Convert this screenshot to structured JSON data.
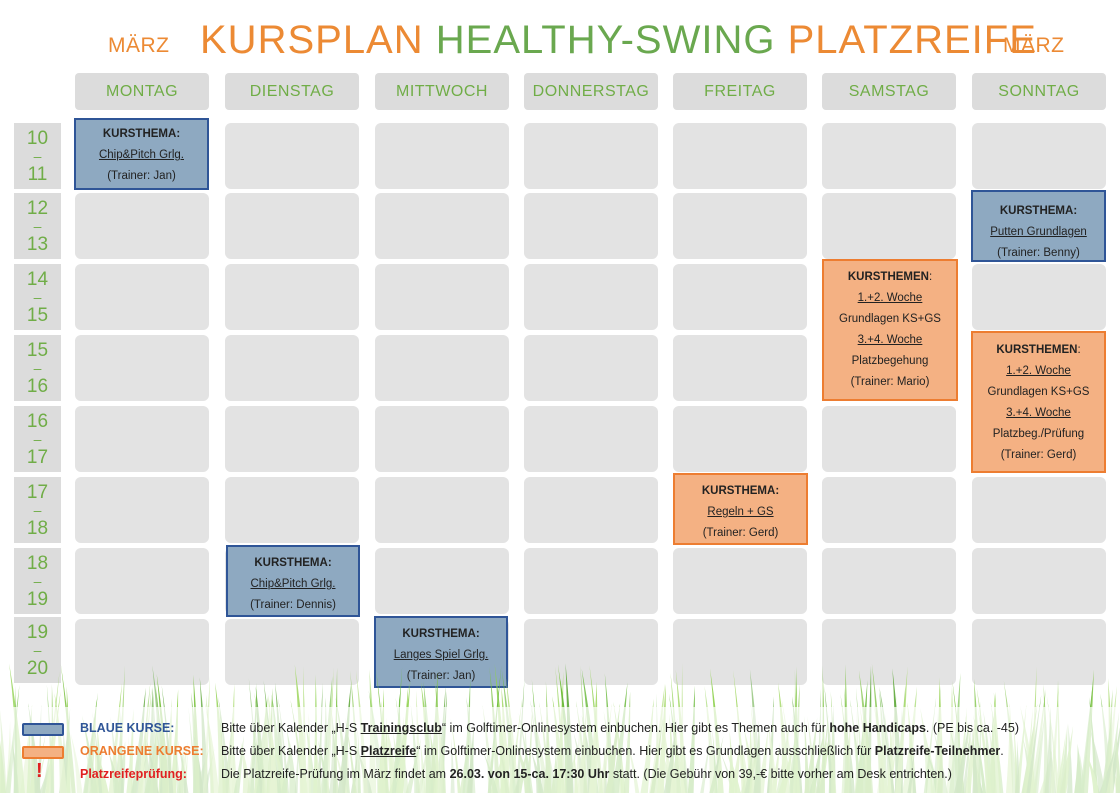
{
  "header": {
    "month_left": "MÄRZ",
    "month_right": "MÄRZ",
    "title_part1": "KURSPLAN",
    "title_part2": "HEALTHY-SWING",
    "title_part3": "PLATZREIFE"
  },
  "days": [
    "MONTAG",
    "DIENSTAG",
    "MITTWOCH",
    "DONNERSTAG",
    "FREITAG",
    "SAMSTAG",
    "SONNTAG"
  ],
  "times": [
    {
      "from": "10",
      "sep": "–",
      "to": "11"
    },
    {
      "from": "12",
      "sep": "–",
      "to": "13"
    },
    {
      "from": "14",
      "sep": "–",
      "to": "15"
    },
    {
      "from": "15",
      "sep": "–",
      "to": "16"
    },
    {
      "from": "16",
      "sep": "–",
      "to": "17"
    },
    {
      "from": "17",
      "sep": "–",
      "to": "18"
    },
    {
      "from": "18",
      "sep": "–",
      "to": "19"
    },
    {
      "from": "19",
      "sep": "–",
      "to": "20"
    }
  ],
  "courses": {
    "mon": {
      "head": "KURSTHEMA:",
      "topic": "Chip&Pitch Grlg.",
      "trainer": "(Trainer: Jan)"
    },
    "tue": {
      "head": "KURSTHEMA:",
      "topic": "Chip&Pitch Grlg.",
      "trainer": "(Trainer: Dennis)"
    },
    "wed": {
      "head": "KURSTHEMA:",
      "topic": "Langes Spiel Grlg.",
      "trainer": "(Trainer: Jan)"
    },
    "fri": {
      "head": "KURSTHEMA:",
      "topic": "Regeln + GS",
      "trainer": "(Trainer: Gerd)"
    },
    "sat": {
      "head": "KURSTHEMEN",
      "colon": ":",
      "week12": "1.+2. Woche",
      "topic1": "Grundlagen KS+GS",
      "week34": "3.+4. Woche",
      "topic2": "Platzbegehung",
      "trainer": "(Trainer: Mario)"
    },
    "sun_blue": {
      "head": "KURSTHEMA:",
      "topic": "Putten Grundlagen",
      "trainer": "(Trainer: Benny)"
    },
    "sun_orange": {
      "head": "KURSTHEMEN",
      "colon": ":",
      "week12": "1.+2. Woche",
      "topic1": "Grundlagen KS+GS",
      "week34": "3.+4. Woche",
      "topic2": "Platzbeg./Prüfung",
      "trainer": "(Trainer: Gerd)"
    }
  },
  "legend": {
    "blue": {
      "label": "BLAUE KURSE:",
      "color": "#2f5597",
      "t1": "Bitte über Kalender „H-S ",
      "b1": "Trainingsclub",
      "t2": "“ im Golftimer-Onlinesystem einbuchen. Hier gibt es Themen auch für ",
      "b2": "hohe Handicaps",
      "t3": ". (PE bis ca. -45)"
    },
    "orange": {
      "label": "ORANGENE KURSE:",
      "color": "#ed7d31",
      "t1": "Bitte über Kalender „H-S ",
      "b1": "Platzreife",
      "t2": "“ im Golftimer-Onlinesystem einbuchen. Hier gibt es Grundlagen ausschließlich für ",
      "b2": "Platzreife-Teilnehmer",
      "t3": "."
    },
    "exam": {
      "icon": "!",
      "label": "Platzreifeprüfung:",
      "color": "#e02020",
      "t1": "Die Platzreife-Prüfung im März findet am ",
      "b1": "26.03. von 15-ca. 17:30 Uhr",
      "t2": " statt. (Die Gebühr von 39,-€ bitte vorher am Desk entrichten.)"
    }
  }
}
